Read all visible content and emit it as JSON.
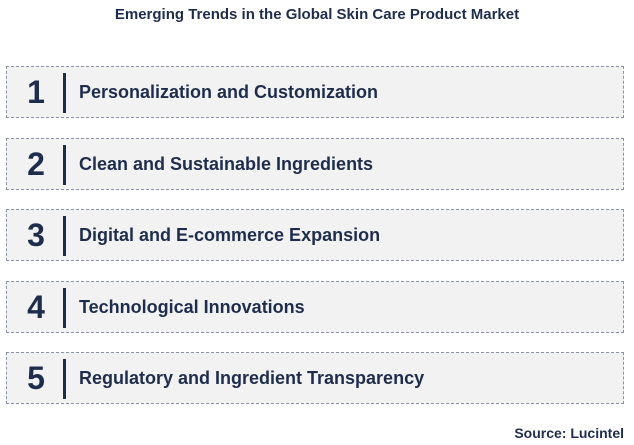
{
  "title": "Emerging Trends in the Global Skin Care Product Market",
  "items": [
    {
      "number": "1",
      "label": "Personalization and Customization"
    },
    {
      "number": "2",
      "label": "Clean and Sustainable Ingredients"
    },
    {
      "number": "3",
      "label": "Digital and E-commerce Expansion"
    },
    {
      "number": "4",
      "label": "Technological Innovations"
    },
    {
      "number": "5",
      "label": "Regulatory and Ingredient Transparency"
    }
  ],
  "source": "Source: Lucintel"
}
